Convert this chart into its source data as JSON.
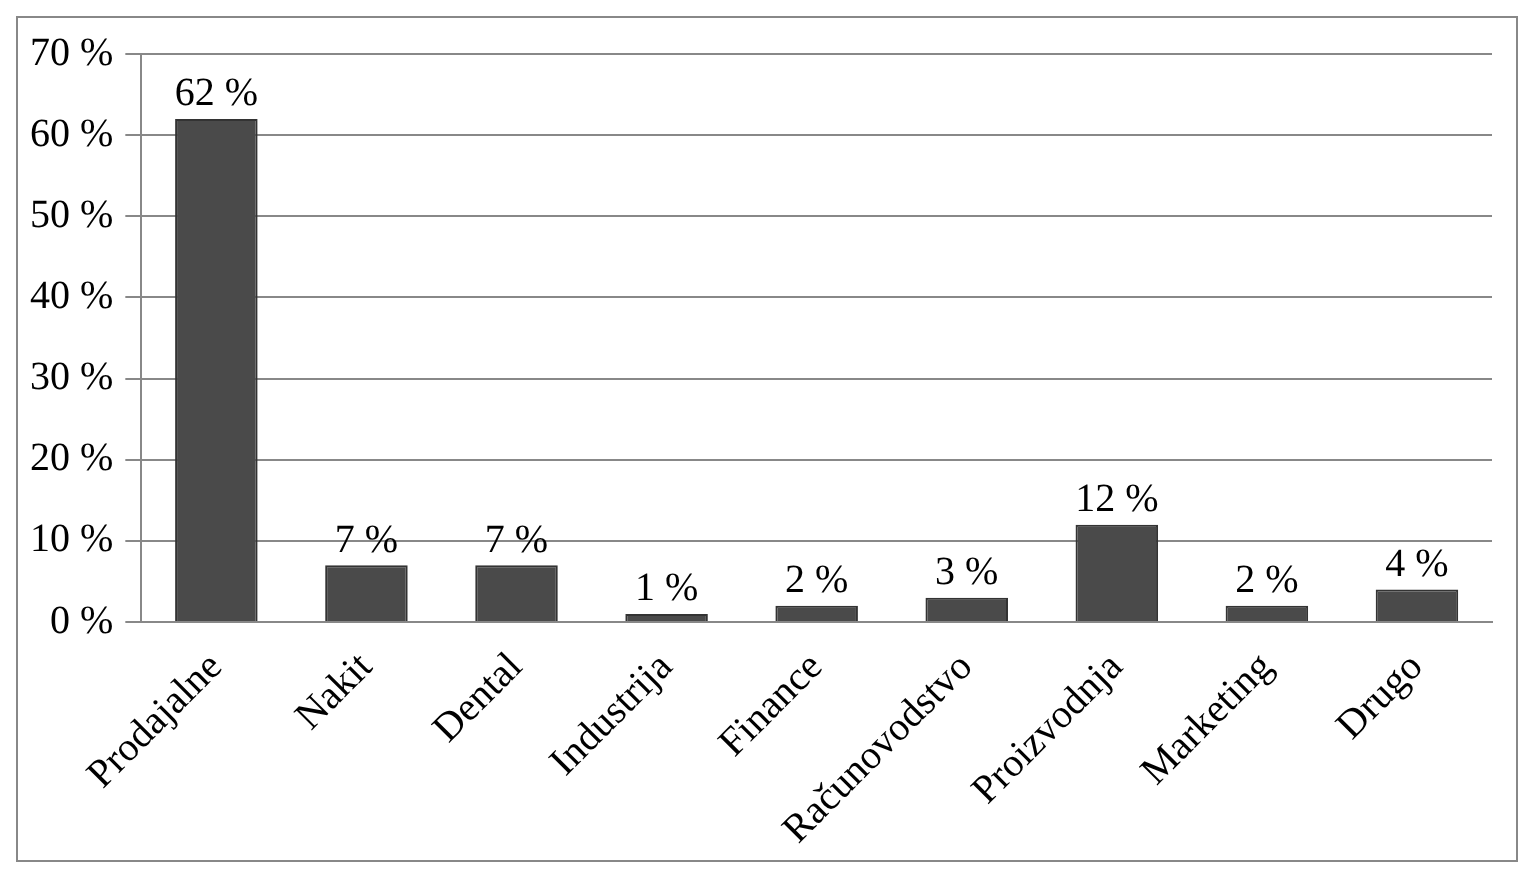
{
  "chart_data": {
    "type": "bar",
    "categories": [
      "Prodajalne",
      "Nakit",
      "Dental",
      "Industrija",
      "Finance",
      "Računovodstvo",
      "Proizvodnja",
      "Marketing",
      "Drugo"
    ],
    "values": [
      62,
      7,
      7,
      1,
      2,
      3,
      12,
      2,
      4
    ],
    "value_labels": [
      "62 %",
      "7 %",
      "7 %",
      "1 %",
      "2 %",
      "3 %",
      "12 %",
      "2 %",
      "4 %"
    ],
    "color": "#4a4a4a",
    "ylim": [
      0,
      70
    ],
    "yticks": [
      {
        "value": 0,
        "label": "0 %"
      },
      {
        "value": 10,
        "label": "10 %"
      },
      {
        "value": 20,
        "label": "20 %"
      },
      {
        "value": 30,
        "label": "30 %"
      },
      {
        "value": 40,
        "label": "40 %"
      },
      {
        "value": 50,
        "label": "50 %"
      },
      {
        "value": 60,
        "label": "60 %"
      },
      {
        "value": 70,
        "label": "70 %"
      }
    ],
    "grid": "y",
    "legend": false
  }
}
